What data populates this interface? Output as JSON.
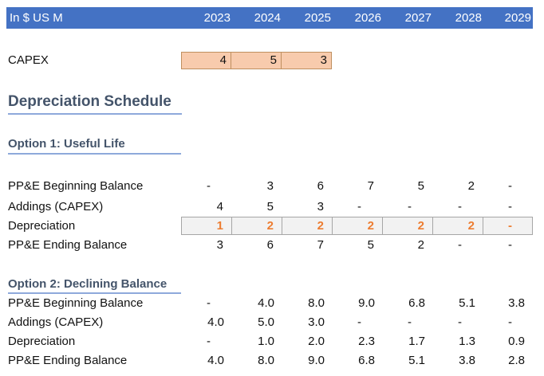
{
  "header": {
    "unit_label": "In $ US M",
    "years": [
      "2023",
      "2024",
      "2025",
      "2026",
      "2027",
      "2028",
      "2029"
    ]
  },
  "capex": {
    "label": "CAPEX",
    "values": [
      "4",
      "5",
      "3"
    ]
  },
  "schedule_title": "Depreciation Schedule",
  "option1": {
    "title": "Option 1: Useful Life",
    "rows": [
      {
        "label": "PP&E Beginning Balance",
        "values": [
          "-",
          "3",
          "6",
          "7",
          "5",
          "2",
          "-"
        ]
      },
      {
        "label": "Addings (CAPEX)",
        "values": [
          "4",
          "5",
          "3",
          "-",
          "-",
          "-",
          "-"
        ]
      },
      {
        "label": "Depreciation",
        "values": [
          "1",
          "2",
          "2",
          "2",
          "2",
          "2",
          "-"
        ]
      },
      {
        "label": "PP&E Ending Balance",
        "values": [
          "3",
          "6",
          "7",
          "5",
          "2",
          "-",
          "-"
        ]
      }
    ]
  },
  "option2": {
    "title": "Option 2: Declining Balance",
    "rows": [
      {
        "label": "PP&E Beginning Balance",
        "values": [
          "-",
          "4.0",
          "8.0",
          "9.0",
          "6.8",
          "5.1",
          "3.8"
        ]
      },
      {
        "label": "Addings (CAPEX)",
        "values": [
          "4.0",
          "5.0",
          "3.0",
          "-",
          "-",
          "-",
          "-"
        ]
      },
      {
        "label": "Depreciation",
        "values": [
          "-",
          "1.0",
          "2.0",
          "2.3",
          "1.7",
          "1.3",
          "0.9"
        ]
      },
      {
        "label": "PP&E Ending Balance",
        "values": [
          "4.0",
          "8.0",
          "9.0",
          "6.8",
          "5.1",
          "3.8",
          "2.8"
        ]
      }
    ]
  },
  "colors": {
    "header_bg": "#4472C4",
    "capex_fill": "#F8CBAD",
    "depreciation_text": "#ED7D31",
    "title_text": "#44546A"
  }
}
